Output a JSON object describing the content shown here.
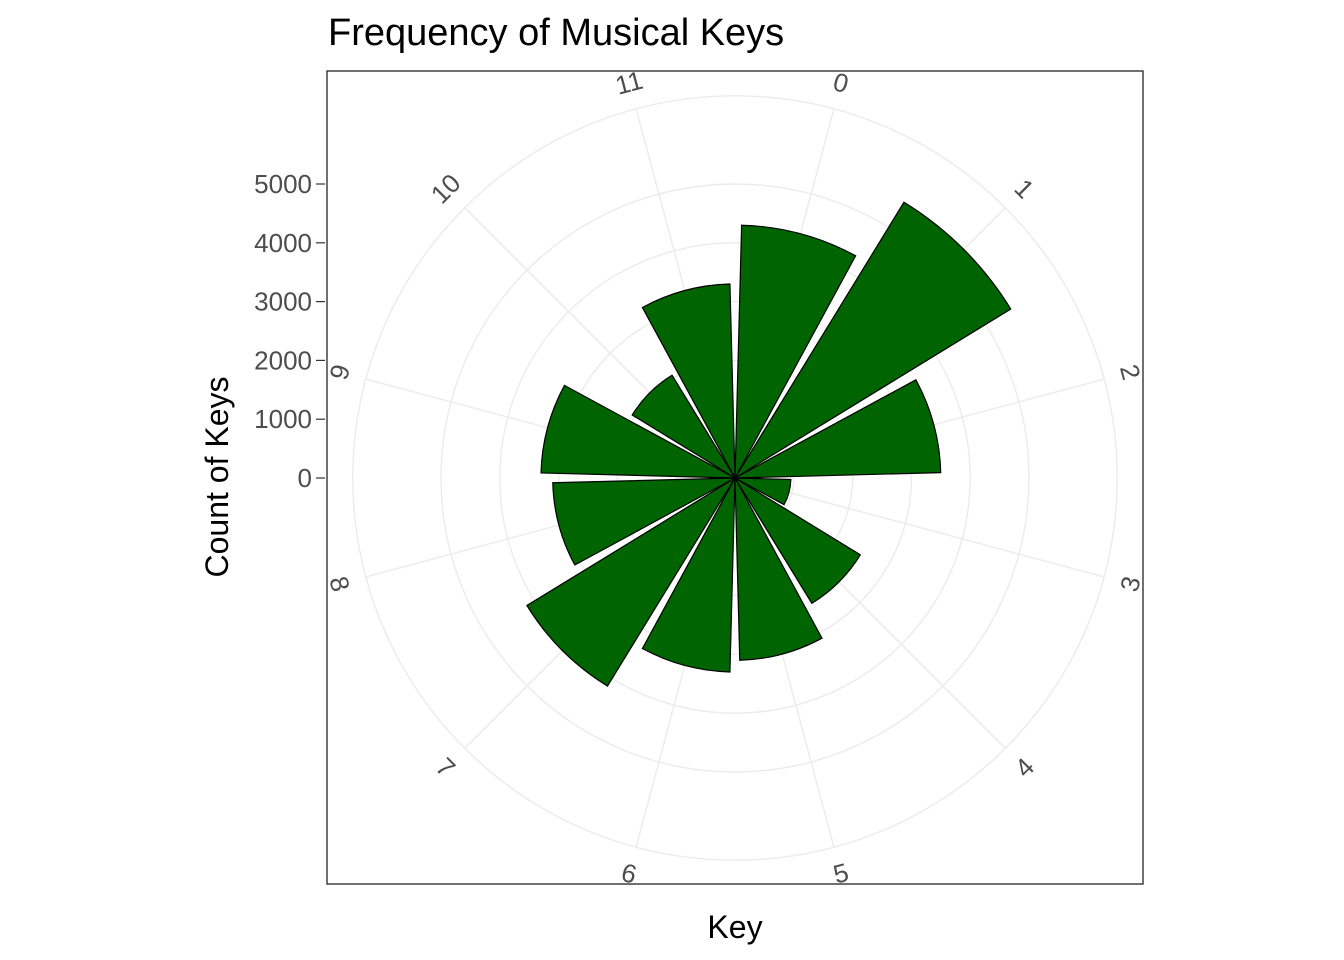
{
  "chart_data": {
    "type": "bar",
    "coord": "polar",
    "title": "Frequency of Musical Keys",
    "xlabel": "Key",
    "ylabel": "Count of Keys",
    "categories": [
      "0",
      "1",
      "2",
      "3",
      "4",
      "5",
      "6",
      "7",
      "8",
      "9",
      "10",
      "11"
    ],
    "values": [
      4300,
      5500,
      3500,
      950,
      2500,
      3100,
      3300,
      4150,
      3100,
      3300,
      2050,
      3300
    ],
    "y_ticks": [
      0,
      1000,
      2000,
      3000,
      4000,
      5000
    ],
    "ylim": [
      0,
      6500
    ],
    "grid": true,
    "bar_fill": "#006400",
    "bar_outline": "#000000",
    "grid_color": "#ebebeb"
  }
}
